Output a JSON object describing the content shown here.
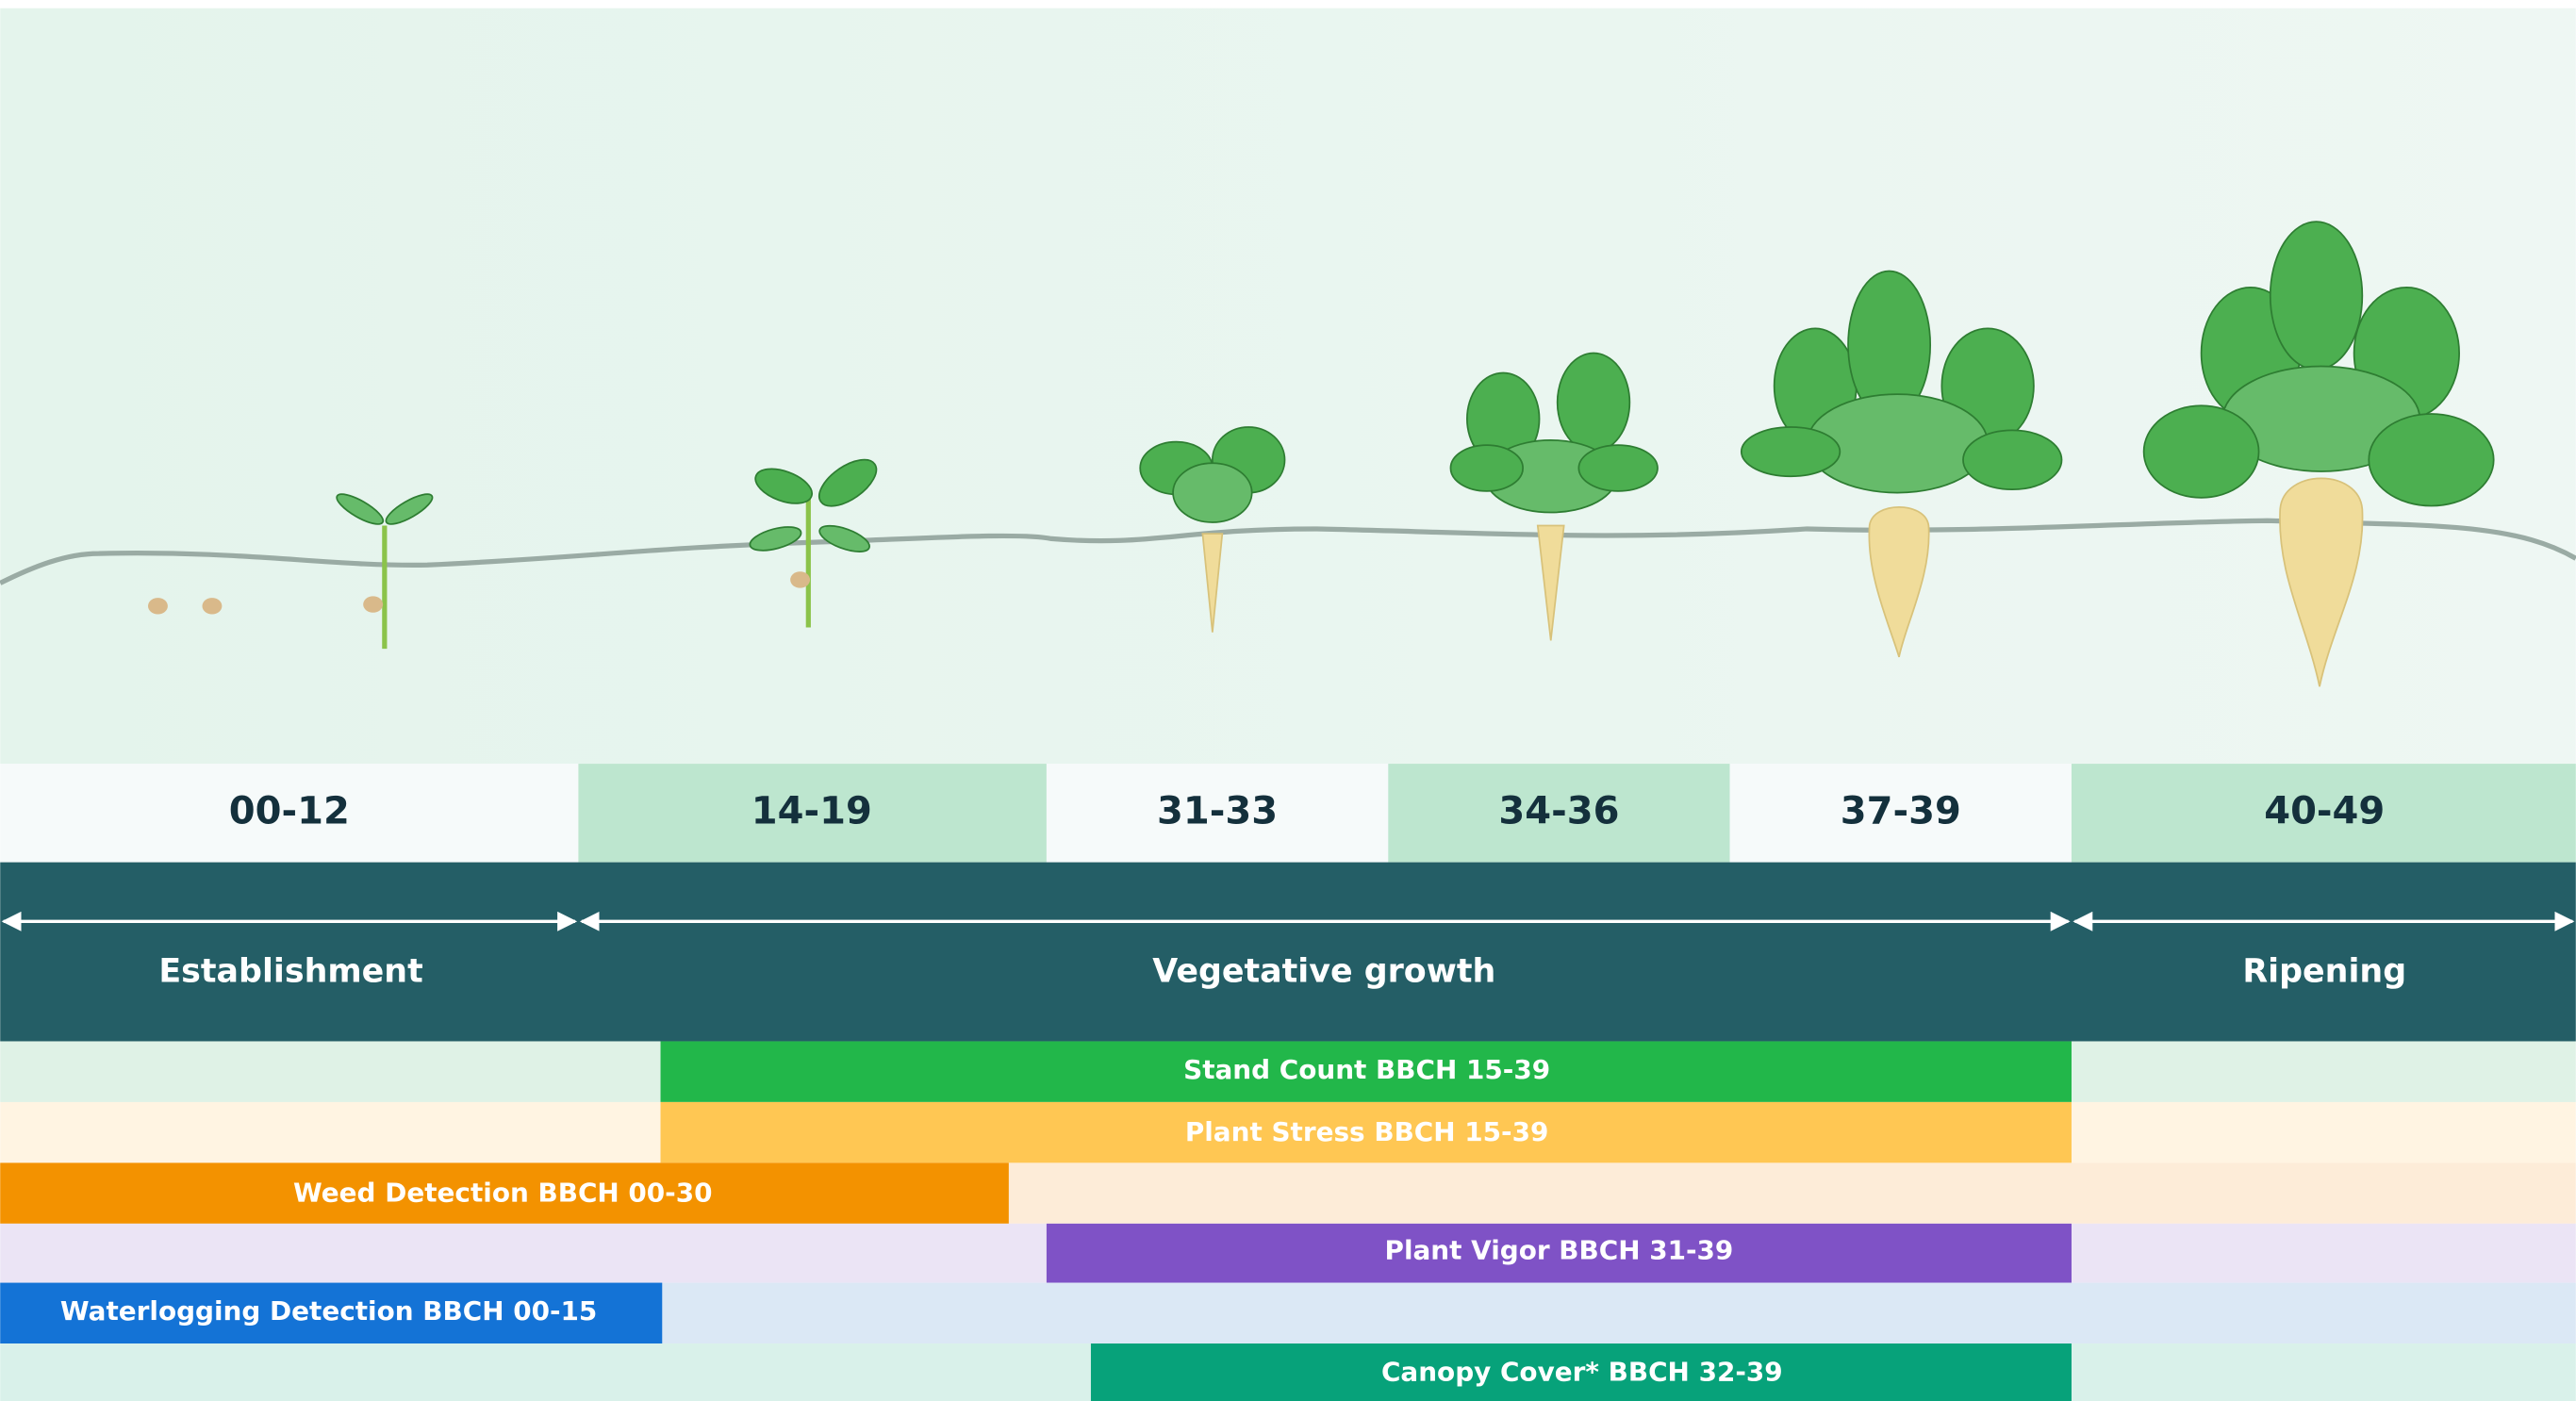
{
  "stages": [
    "00-12",
    "14-19",
    "31-33",
    "34-36",
    "37-39",
    "40-49"
  ],
  "phases": [
    "Establishment",
    "Vegetative growth",
    "Ripening"
  ],
  "analytics": [
    "Stand Count BBCH 15-39",
    "Plant Stress BBCH 15-39",
    "Weed Detection BBCH 00-30",
    "Plant Vigor BBCH 31-39",
    "Waterlogging Detection BBCH 00-15",
    "Canopy Cover* BBCH 32-39"
  ]
}
